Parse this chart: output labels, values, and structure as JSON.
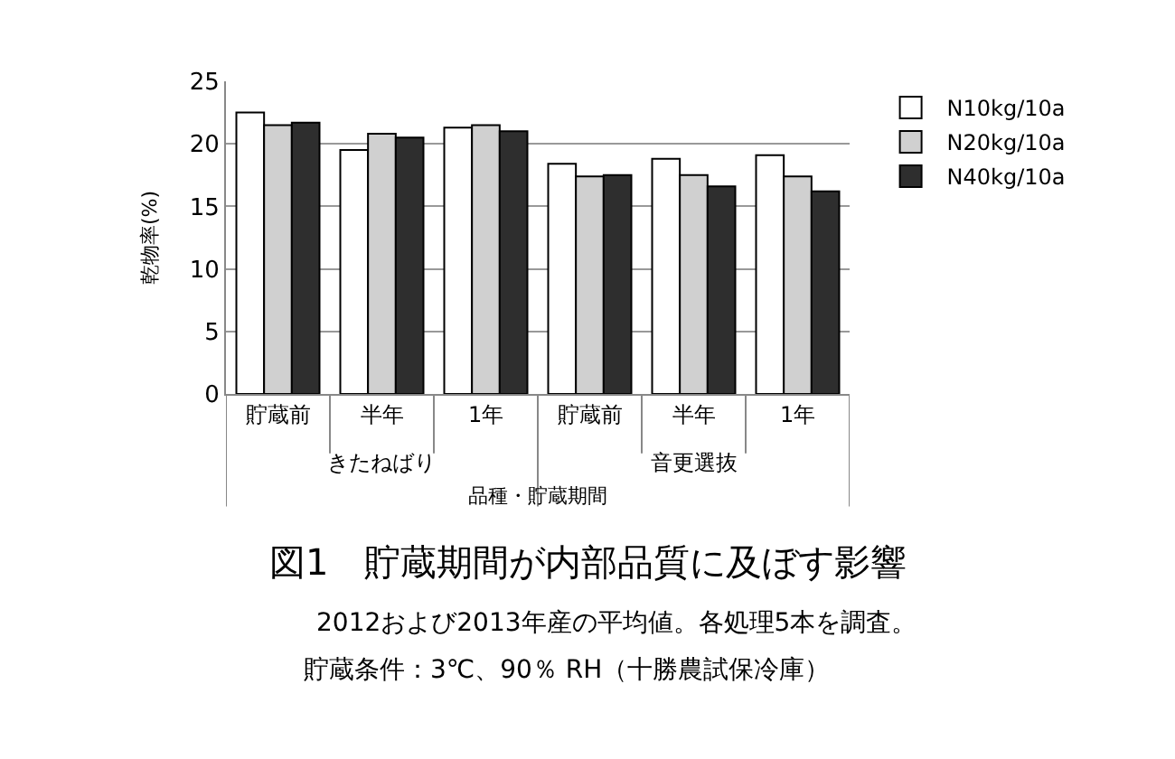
{
  "chart_data": {
    "type": "bar",
    "title": "図1　貯蔵期間が内部品質に及ぼす影響",
    "xlabel": "品種・貯蔵期間",
    "ylabel": "乾物率(%)",
    "categories": [
      "貯蔵前",
      "半年",
      "1年",
      "貯蔵前",
      "半年",
      "1年"
    ],
    "series": [
      {
        "name": "N10kg/10a",
        "color": "#ffffff",
        "values": [
          22.5,
          19.5,
          21.3,
          18.4,
          18.8,
          19.1
        ]
      },
      {
        "name": "N20kg/10a",
        "color": "#d0d0d0",
        "values": [
          21.5,
          20.8,
          21.5,
          17.4,
          17.5,
          17.4
        ]
      },
      {
        "name": "N40kg/10a",
        "color": "#2e2e2e",
        "values": [
          21.7,
          20.5,
          21.0,
          17.5,
          16.6,
          16.2
        ]
      }
    ],
    "annotations": [
      "きたねばり",
      "音更選抜",
      "2012および2013年産の平均値。各処理5本を調査。",
      "貯蔵条件：3℃、90％ RH（十勝農試保冷庫）"
    ],
    "ylim": [
      0,
      25
    ],
    "yticks": [
      0,
      5,
      10,
      15,
      20,
      25
    ],
    "grid": "y",
    "legend": "top right"
  }
}
